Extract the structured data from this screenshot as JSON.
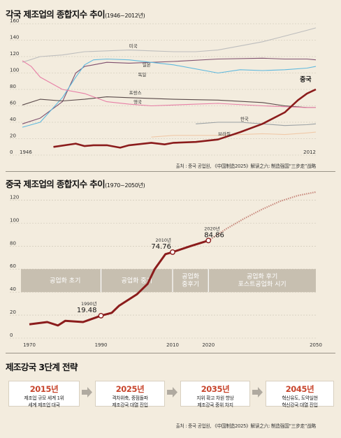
{
  "chart1": {
    "title": "각국 제조업의 종합지수 추이",
    "subtitle": "(1946~2012년)",
    "source": "출처 : 중국 공업원, 《中国制造2025》解读之六: 制造强国“三步走”战略",
    "colors": {
      "미국": "#bdbdbd",
      "일본": "#7f4f6e",
      "독일": "#5fb9de",
      "프랑스": "#5a4a4a",
      "영국": "#e77ea6",
      "한국": "#9aa0a3",
      "브라질": "#f0c9a8",
      "중국": "#8b1c1c"
    }
  },
  "chart2": {
    "title": "중국 제조업의 종합지수 추이",
    "subtitle": "(1970~2050년)",
    "stages": [
      "공업화 초기",
      "공업화 중기",
      "공업화 중후기",
      "공업화 후기 포스트공업화 시기"
    ],
    "annotations": [
      {
        "year_label": "1990년",
        "value": "19.48"
      },
      {
        "year_label": "2010년",
        "value": "74.76"
      },
      {
        "year_label": "2020년",
        "value": "84.86"
      }
    ]
  },
  "strategy": {
    "title": "제조강국 3단계 전략",
    "stages": [
      {
        "year": "2015년",
        "line1": "제조업 규모 세계 1위",
        "line2": "세계 제조업 대국"
      },
      {
        "year": "2025년",
        "line1": "격차위축, 중점돌파",
        "line2": "제조강국 대열 진입"
      },
      {
        "year": "2035년",
        "line1": "지위 확고 차원 향상",
        "line2": "제조강국 중위 차지"
      },
      {
        "year": "2045년",
        "line1": "혁신유도, 도약실현",
        "line2": "혁신강국 대열 진입"
      }
    ],
    "source": "출처 : 중국 공업원, 《中国制造2025》解读之六: 制造强国“三步走”战略"
  },
  "chart_data": [
    {
      "type": "line",
      "title": "각국 제조업의 종합지수 추이 (1946~2012년)",
      "xlim": [
        1946,
        2012
      ],
      "ylim": [
        0,
        160
      ],
      "yticks": [
        0,
        20,
        40,
        60,
        80,
        100,
        120,
        140,
        160
      ],
      "xticks": [
        "1946",
        "2012"
      ],
      "grid": true,
      "series": [
        {
          "name": "미국",
          "x": [
            1946,
            1950,
            1955,
            1960,
            1965,
            1970,
            1975,
            1980,
            1985,
            1990,
            1995,
            2000,
            2005,
            2010,
            2012
          ],
          "values": [
            113,
            120,
            122,
            126,
            127,
            128,
            127,
            126,
            126,
            128,
            133,
            138,
            145,
            152,
            155
          ]
        },
        {
          "name": "일본",
          "x": [
            1946,
            1950,
            1955,
            1958,
            1960,
            1962,
            1965,
            1970,
            1980,
            1990,
            2000,
            2005,
            2010,
            2012
          ],
          "values": [
            38,
            45,
            65,
            100,
            108,
            110,
            113,
            112,
            114,
            117,
            118,
            117,
            117,
            116
          ]
        },
        {
          "name": "독일",
          "x": [
            1946,
            1950,
            1955,
            1958,
            1960,
            1962,
            1965,
            1970,
            1980,
            1990,
            1995,
            2000,
            2005,
            2010,
            2012
          ],
          "values": [
            34,
            40,
            70,
            95,
            110,
            116,
            117,
            116,
            110,
            100,
            104,
            103,
            104,
            106,
            108
          ]
        },
        {
          "name": "프랑스",
          "x": [
            1946,
            1950,
            1955,
            1960,
            1965,
            1970,
            1980,
            1990,
            2000,
            2005,
            2010,
            2012
          ],
          "values": [
            61,
            68,
            66,
            68,
            71,
            70,
            68,
            67,
            64,
            60,
            58,
            58
          ]
        },
        {
          "name": "영국",
          "x": [
            1946,
            1948,
            1950,
            1955,
            1960,
            1965,
            1970,
            1975,
            1980,
            1985,
            1990,
            2000,
            2010,
            2012
          ],
          "values": [
            115,
            108,
            95,
            80,
            75,
            65,
            62,
            60,
            61,
            62,
            63,
            60,
            58,
            58
          ]
        },
        {
          "name": "한국",
          "x": [
            1985,
            1990,
            1995,
            2000,
            2005,
            2010,
            2012
          ],
          "values": [
            38,
            40,
            40,
            38,
            36,
            37,
            38
          ]
        },
        {
          "name": "브라질",
          "x": [
            1975,
            1980,
            1990,
            2000,
            2005,
            2010,
            2012
          ],
          "values": [
            22,
            24,
            24,
            26,
            25,
            27,
            28
          ]
        },
        {
          "name": "중국",
          "x": [
            1953,
            1958,
            1960,
            1962,
            1965,
            1968,
            1970,
            1975,
            1978,
            1980,
            1985,
            1990,
            1995,
            2000,
            2005,
            2008,
            2010,
            2012
          ],
          "values": [
            10,
            14,
            11,
            12,
            12,
            9,
            12,
            15,
            13,
            15,
            16,
            19,
            28,
            38,
            52,
            67,
            75,
            80
          ]
        }
      ]
    },
    {
      "type": "line",
      "title": "중국 제조업의 종합지수 추이 (1970~2050년)",
      "xlim": [
        1970,
        2050
      ],
      "ylim": [
        0,
        130
      ],
      "yticks": [
        0,
        20,
        40,
        60,
        80,
        100,
        120
      ],
      "xticks": [
        "1970",
        "1990",
        "2010",
        "2020",
        "2050"
      ],
      "grid": true,
      "series": [
        {
          "name": "중국",
          "x": [
            1970,
            1975,
            1978,
            1980,
            1985,
            1990,
            1993,
            1995,
            2000,
            2003,
            2005,
            2008,
            2010,
            2015,
            2020
          ],
          "values": [
            12,
            14,
            11,
            15,
            14,
            19.48,
            22,
            28,
            38,
            47,
            60,
            73,
            74.76,
            80,
            84.86
          ]
        },
        {
          "name": "중국 (전망)",
          "x": [
            2020,
            2025,
            2030,
            2035,
            2040,
            2045,
            2050
          ],
          "values": [
            84.86,
            95,
            104,
            112,
            119,
            124,
            127
          ]
        }
      ]
    }
  ]
}
